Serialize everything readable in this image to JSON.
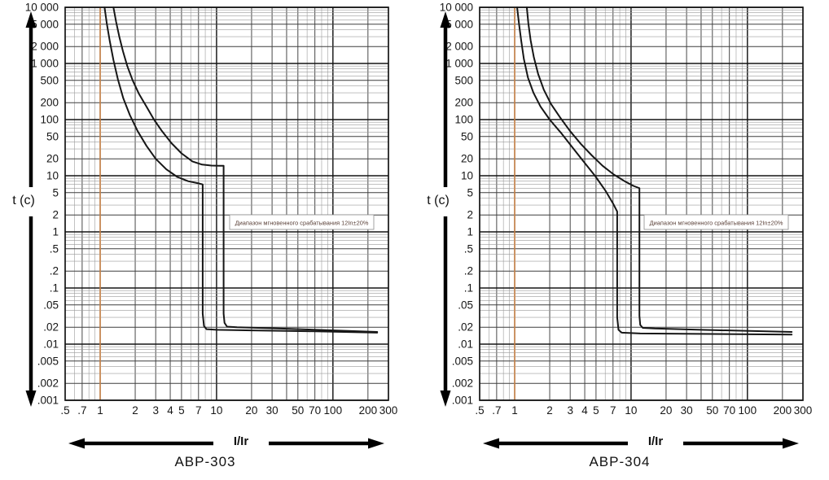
{
  "page": {
    "background": "#ffffff"
  },
  "shared": {
    "y_axis_label": "t (c)",
    "x_axis_label": "I/Ir",
    "y_ticks": [
      {
        "label": "10 000",
        "value": 10000
      },
      {
        "label": "5 000",
        "value": 5000
      },
      {
        "label": "2 000",
        "value": 2000
      },
      {
        "label": "1 000",
        "value": 1000
      },
      {
        "label": "500",
        "value": 500
      },
      {
        "label": "200",
        "value": 200
      },
      {
        "label": "100",
        "value": 100
      },
      {
        "label": "50",
        "value": 50
      },
      {
        "label": "20",
        "value": 20
      },
      {
        "label": "10",
        "value": 10
      },
      {
        "label": "5",
        "value": 5
      },
      {
        "label": "2",
        "value": 2
      },
      {
        "label": "1",
        "value": 1
      },
      {
        "label": ".5",
        "value": 0.5
      },
      {
        "label": ".2",
        "value": 0.2
      },
      {
        "label": ".1",
        "value": 0.1
      },
      {
        "label": ".05",
        "value": 0.05
      },
      {
        "label": ".02",
        "value": 0.02
      },
      {
        "label": ".01",
        "value": 0.01
      },
      {
        "label": ".005",
        "value": 0.005
      },
      {
        "label": ".002",
        "value": 0.002
      },
      {
        "label": ".001",
        "value": 0.001
      }
    ],
    "x_ticks": [
      {
        "label": ".5",
        "value": 0.5
      },
      {
        "label": ".7",
        "value": 0.7
      },
      {
        "label": "1",
        "value": 1
      },
      {
        "label": "2",
        "value": 2
      },
      {
        "label": "3",
        "value": 3
      },
      {
        "label": "4",
        "value": 4
      },
      {
        "label": "5",
        "value": 5
      },
      {
        "label": "7",
        "value": 7
      },
      {
        "label": "10",
        "value": 10
      },
      {
        "label": "20",
        "value": 20
      },
      {
        "label": "30",
        "value": 30
      },
      {
        "label": "50",
        "value": 50
      },
      {
        "label": "70",
        "value": 70
      },
      {
        "label": "100",
        "value": 100
      },
      {
        "label": "200",
        "value": 200
      },
      {
        "label": "300",
        "value": 300
      }
    ],
    "colors": {
      "curve": "#161616",
      "grid_major": "#151515",
      "grid_medium": "#3f3f3f",
      "grid_minor": "#9b9b9b",
      "reference_line": "#e8924a",
      "annotation_text": "#5a4038",
      "annotation_border": "#8d8d8d",
      "axis_arrow": "#000000"
    }
  },
  "chart_data": [
    {
      "type": "line",
      "id": "avr-303",
      "title": "АВР-303",
      "xlabel": "I/Ir",
      "ylabel": "t (c)",
      "x_scale": "log",
      "y_scale": "log",
      "xlim": [
        0.5,
        300
      ],
      "ylim": [
        0.001,
        10000
      ],
      "grid": "on",
      "reference_line_x": 1,
      "annotation": "Диапазон мгновенного срабатывания 12In±20%",
      "instantaneous_trip": "12In±20%",
      "series": [
        {
          "name": "min-trip-curve",
          "points": [
            [
              1.09,
              10000
            ],
            [
              1.14,
              5200
            ],
            [
              1.21,
              2500
            ],
            [
              1.3,
              1150
            ],
            [
              1.42,
              520
            ],
            [
              1.58,
              240
            ],
            [
              1.8,
              120
            ],
            [
              2.1,
              62
            ],
            [
              2.5,
              34
            ],
            [
              3.0,
              20
            ],
            [
              3.7,
              13
            ],
            [
              4.6,
              9.5
            ],
            [
              5.7,
              8.0
            ],
            [
              7.0,
              7.3
            ],
            [
              7.6,
              7.0
            ],
            [
              7.6,
              0.035
            ],
            [
              7.8,
              0.021
            ],
            [
              8.2,
              0.0185
            ],
            [
              10,
              0.018
            ],
            [
              20,
              0.0176
            ],
            [
              60,
              0.017
            ],
            [
              240,
              0.016
            ]
          ]
        },
        {
          "name": "max-trip-curve",
          "points": [
            [
              1.3,
              10000
            ],
            [
              1.37,
              5500
            ],
            [
              1.46,
              3000
            ],
            [
              1.57,
              1650
            ],
            [
              1.71,
              900
            ],
            [
              1.9,
              500
            ],
            [
              2.15,
              290
            ],
            [
              2.46,
              180
            ],
            [
              2.9,
              100
            ],
            [
              3.4,
              62
            ],
            [
              4.1,
              38
            ],
            [
              5.0,
              25
            ],
            [
              6.2,
              18
            ],
            [
              7.5,
              15.8
            ],
            [
              9.0,
              15.2
            ],
            [
              10.5,
              15.1
            ],
            [
              11.5,
              15
            ],
            [
              11.5,
              0.035
            ],
            [
              11.7,
              0.024
            ],
            [
              12.3,
              0.0205
            ],
            [
              15,
              0.02
            ],
            [
              30,
              0.0192
            ],
            [
              240,
              0.0165
            ]
          ]
        }
      ]
    },
    {
      "type": "line",
      "id": "avr-304",
      "title": "АВР-304",
      "xlabel": "I/Ir",
      "ylabel": "t (c)",
      "x_scale": "log",
      "y_scale": "log",
      "xlim": [
        0.5,
        300
      ],
      "ylim": [
        0.001,
        10000
      ],
      "grid": "on",
      "reference_line_x": 1,
      "annotation": "Диапазон мгновенного срабатывания 12In±20%",
      "instantaneous_trip": "12In±20%",
      "series": [
        {
          "name": "min-trip-curve",
          "points": [
            [
              1.05,
              10000
            ],
            [
              1.09,
              5000
            ],
            [
              1.14,
              2500
            ],
            [
              1.2,
              1200
            ],
            [
              1.3,
              560
            ],
            [
              1.45,
              300
            ],
            [
              1.67,
              170
            ],
            [
              2.0,
              100
            ],
            [
              2.5,
              58
            ],
            [
              3.1,
              33
            ],
            [
              3.9,
              18
            ],
            [
              4.9,
              10
            ],
            [
              6.0,
              5.5
            ],
            [
              7.0,
              3.2
            ],
            [
              7.6,
              2.3
            ],
            [
              7.6,
              0.03
            ],
            [
              7.8,
              0.018
            ],
            [
              8.3,
              0.016
            ],
            [
              12,
              0.0155
            ],
            [
              240,
              0.0148
            ]
          ]
        },
        {
          "name": "max-trip-curve",
          "points": [
            [
              1.27,
              10000
            ],
            [
              1.31,
              5200
            ],
            [
              1.37,
              2600
            ],
            [
              1.46,
              1300
            ],
            [
              1.59,
              650
            ],
            [
              1.78,
              340
            ],
            [
              2.05,
              190
            ],
            [
              2.45,
              110
            ],
            [
              3.0,
              62
            ],
            [
              3.7,
              37
            ],
            [
              4.6,
              23
            ],
            [
              5.7,
              15
            ],
            [
              7.1,
              10.5
            ],
            [
              8.8,
              8.0
            ],
            [
              10.5,
              6.6
            ],
            [
              11.8,
              6.0
            ],
            [
              11.8,
              0.032
            ],
            [
              12.0,
              0.022
            ],
            [
              12.6,
              0.0195
            ],
            [
              16,
              0.019
            ],
            [
              40,
              0.018
            ],
            [
              240,
              0.0165
            ]
          ]
        }
      ]
    }
  ]
}
